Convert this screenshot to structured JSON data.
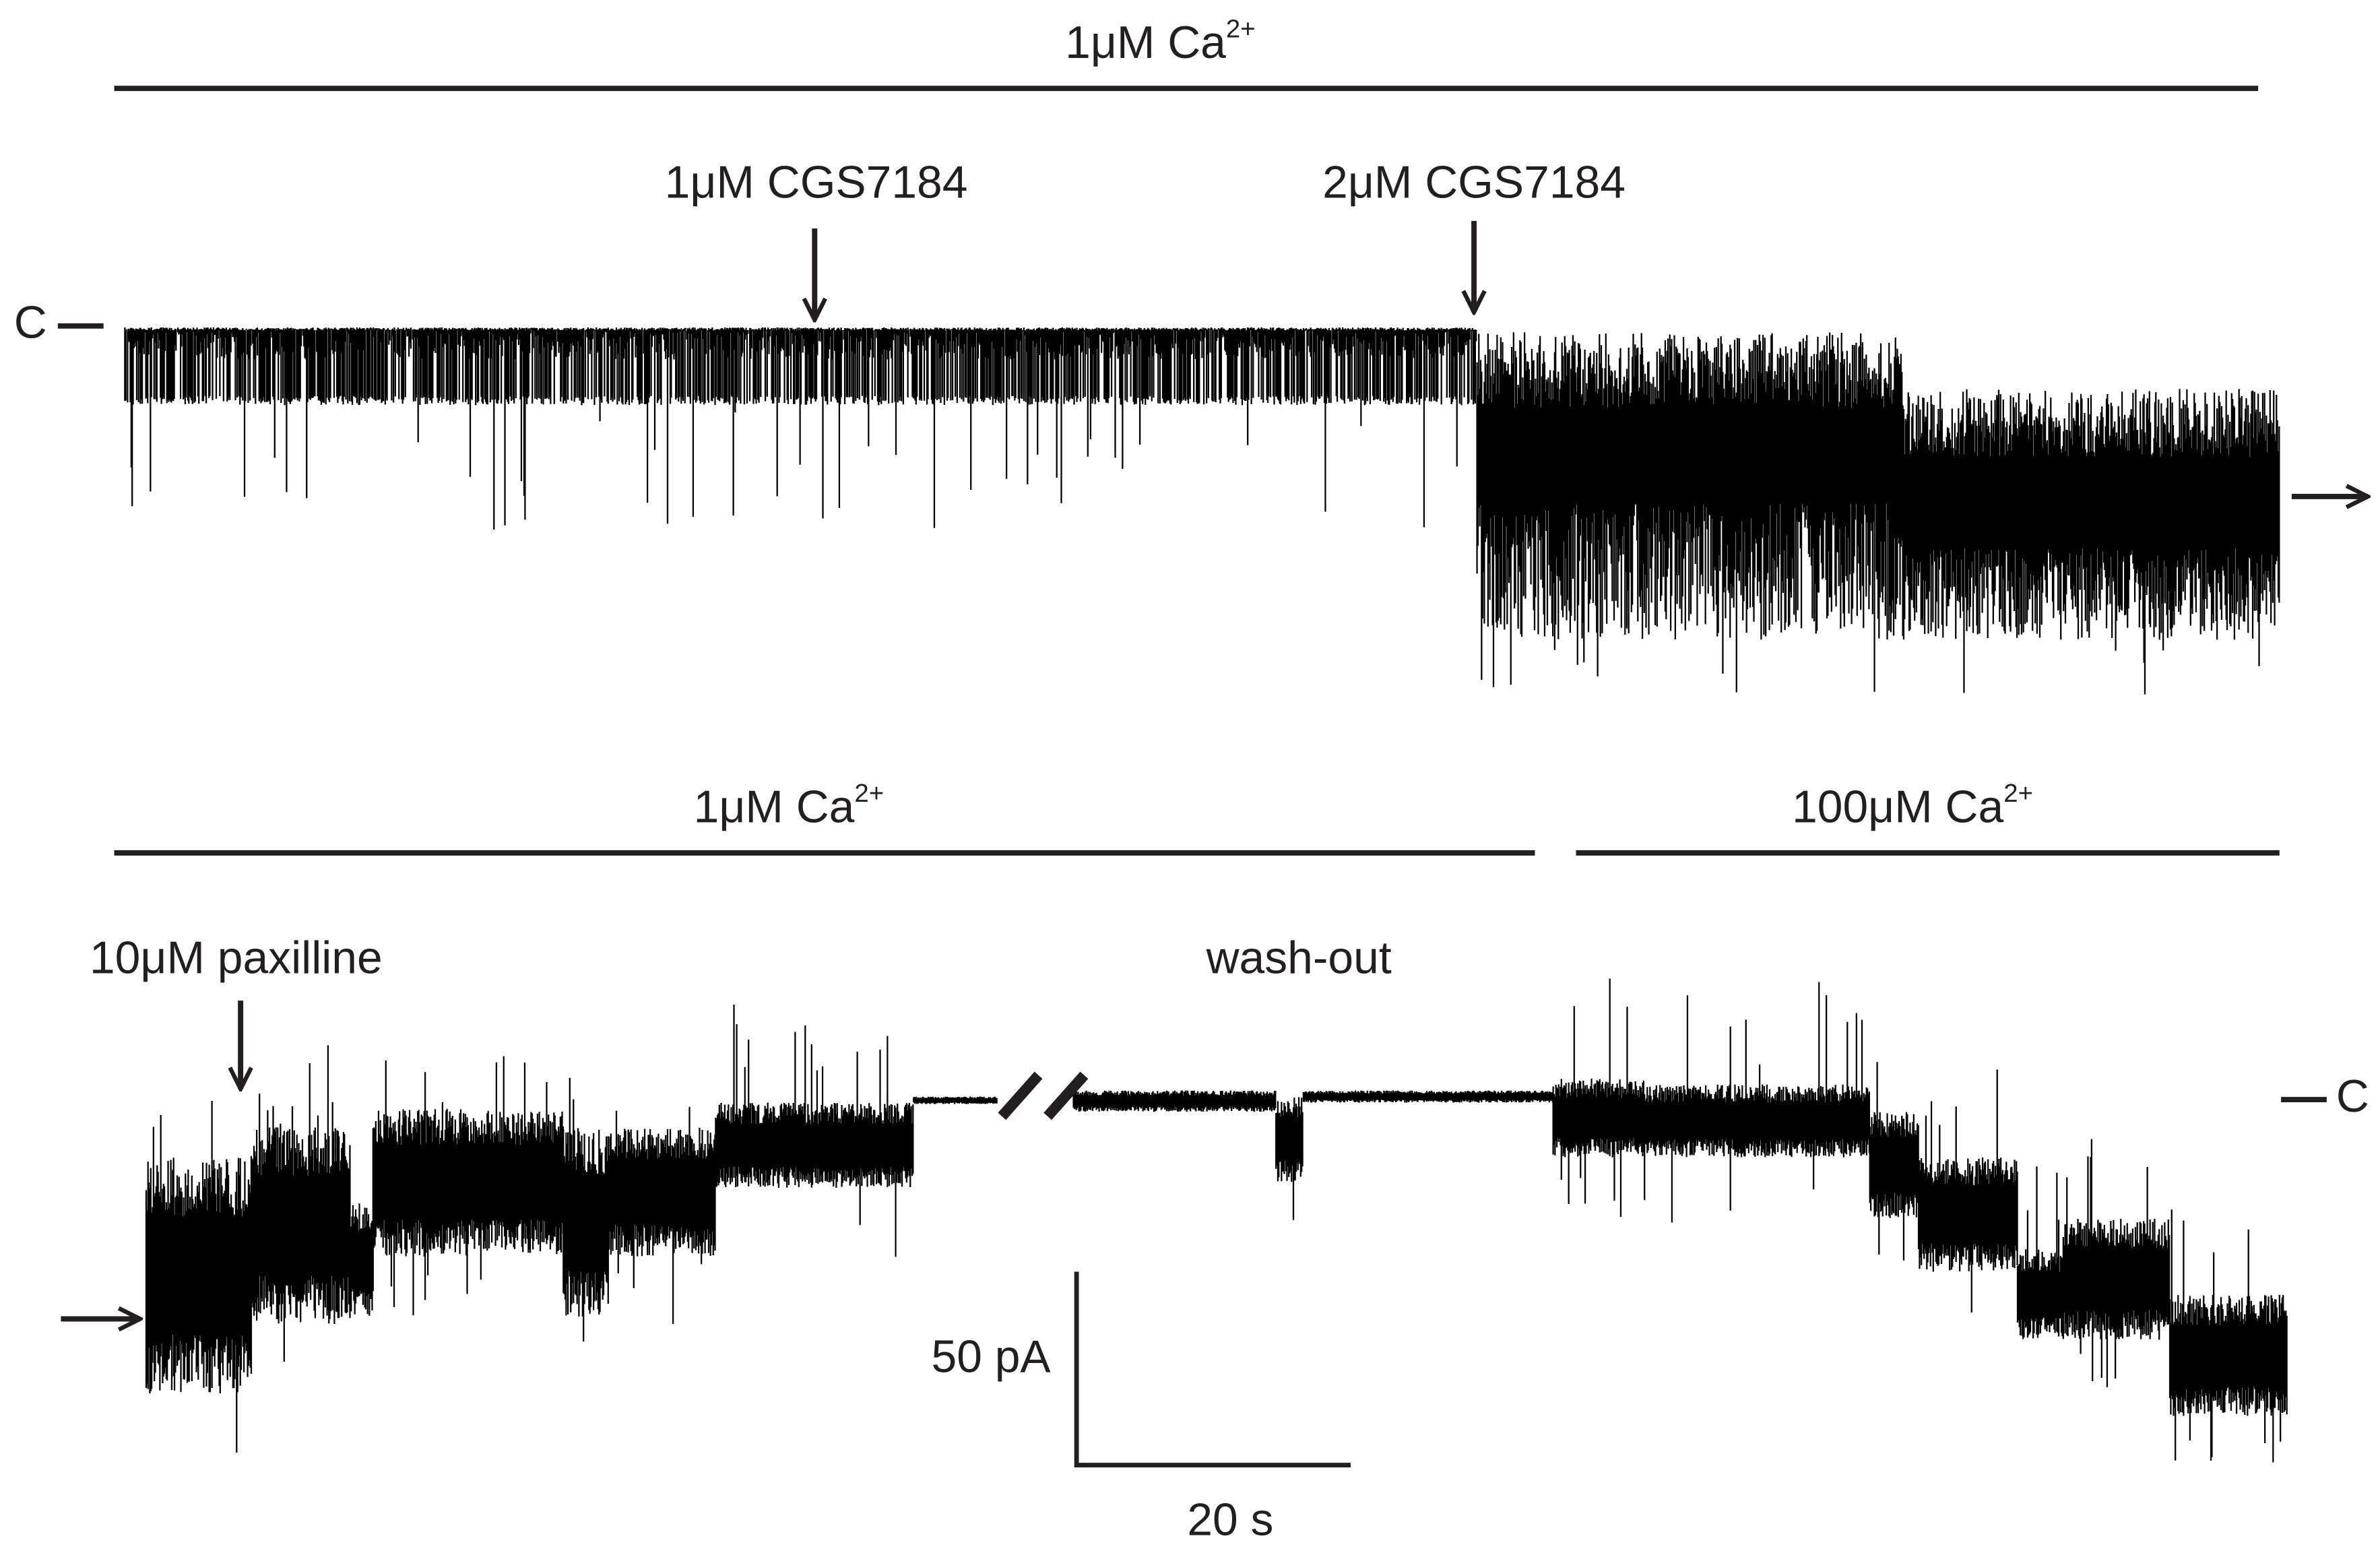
{
  "top_panel": {
    "condition": {
      "text": "1μM Ca",
      "sup": "2+"
    },
    "annotations": [
      "1μM CGS7184",
      "2μM CGS7184"
    ],
    "closed_label": "C"
  },
  "bottom_panel": {
    "conditions": [
      {
        "text": "1μM Ca",
        "sup": "2+"
      },
      {
        "text": "100μM Ca",
        "sup": "2+"
      }
    ],
    "annotations": [
      "10μM paxilline",
      "wash-out"
    ],
    "closed_label": "C"
  },
  "scale_bar": {
    "current": "50 pA",
    "time": "20 s"
  }
}
